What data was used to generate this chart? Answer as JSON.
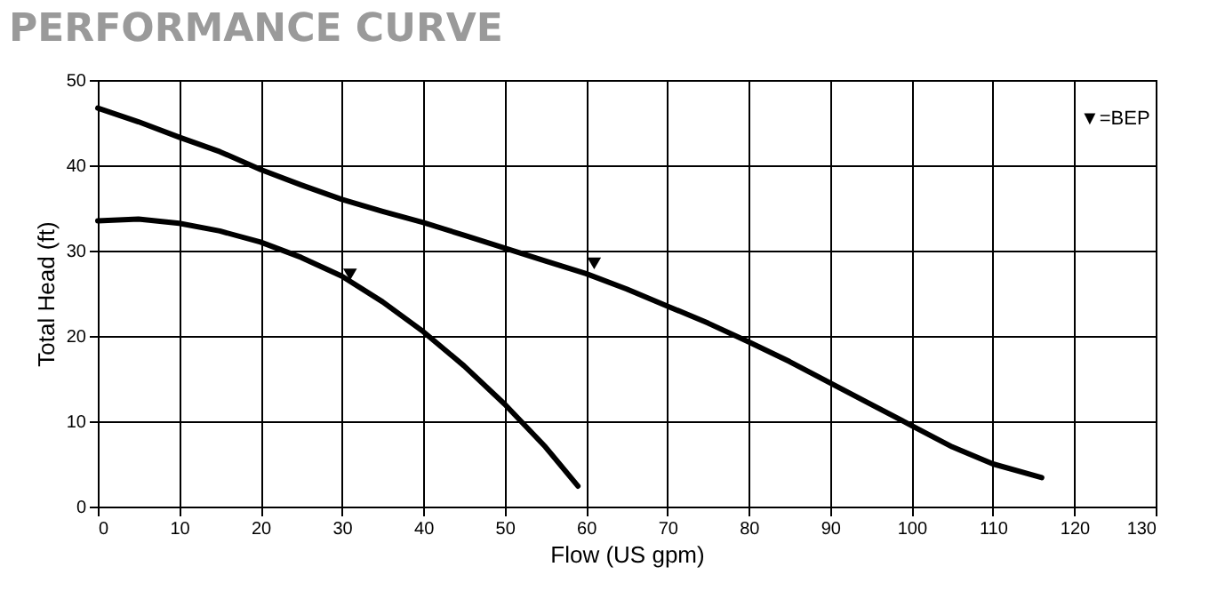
{
  "chart_data": {
    "type": "line",
    "title": "PERFORMANCE CURVE",
    "xlabel": "Flow (US gpm)",
    "ylabel": "Total Head (ft)",
    "annotations": [
      "▼=BEP"
    ],
    "series": [
      {
        "color": "#000000",
        "x": [
          0,
          5,
          10,
          15,
          20,
          25,
          30,
          35,
          40,
          45,
          50,
          55,
          60,
          65,
          70,
          75,
          80,
          85,
          90,
          95,
          100,
          105,
          110,
          116
        ],
        "values": [
          46.7,
          45.1,
          43.3,
          41.6,
          39.5,
          37.7,
          36,
          34.6,
          33.3,
          31.8,
          30.3,
          28.8,
          27.3,
          25.5,
          23.5,
          21.5,
          19.3,
          17,
          14.5,
          12,
          9.5,
          7,
          5,
          3.4
        ]
      },
      {
        "color": "#000000",
        "x": [
          0,
          5,
          10,
          15,
          20,
          25,
          30,
          35,
          40,
          45,
          50,
          55,
          59
        ],
        "values": [
          33.5,
          33.7,
          33.2,
          32.3,
          31,
          29.2,
          27,
          24,
          20.5,
          16.5,
          12,
          7,
          2.4
        ]
      },
      {
        "type": "scatter",
        "marker": "triangle",
        "color": "#000000",
        "x": [
          31,
          61
        ],
        "values": [
          27.2,
          28.5
        ]
      }
    ],
    "xlim": [
      0,
      130
    ],
    "xticks": [
      0,
      10,
      20,
      30,
      40,
      50,
      60,
      70,
      80,
      90,
      100,
      110,
      120,
      130
    ],
    "ylim": [
      0,
      50
    ],
    "yticks": [
      0,
      10,
      20,
      30,
      40,
      50
    ],
    "grid": true,
    "marker": "none",
    "line_style": "solid"
  }
}
